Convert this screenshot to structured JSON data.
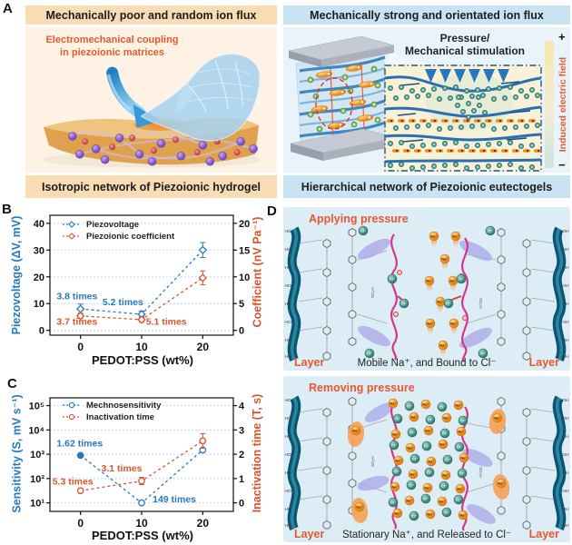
{
  "figure": {
    "panel_a": {
      "label": "A",
      "left": {
        "header": "Mechanically poor and random ion flux",
        "caption_line1": "Electromechanical coupling",
        "caption_line2": "in piezoionic matrices",
        "footer": "Isotropic network of Piezoionic hydrogel"
      },
      "right": {
        "header": "Mechanically strong and orientated ion flux",
        "stimulus_line1": "Pressure/",
        "stimulus_line2": "Mechanical stimulation",
        "field_label": "Induced electric field",
        "field_plus": "+",
        "field_minus": "−",
        "footer": "Hierarchical network of Piezoionic eutectogels"
      }
    },
    "panel_b": {
      "label": "B"
    },
    "panel_c": {
      "label": "C"
    },
    "panel_d": {
      "label": "D",
      "top": {
        "title": "Applying pressure",
        "layer_left": "Layer",
        "layer_right": "Layer",
        "caption": "Mobile Na⁺, and Bound to Cl⁻"
      },
      "bottom": {
        "title": "Removing pressure",
        "layer_left": "Layer",
        "layer_right": "Layer",
        "caption": "Stationary Na⁺, and Released to Cl⁻"
      },
      "ions": {
        "na": "Na⁺",
        "cl": "Cl⁻",
        "ho": "HO",
        "oh": "OH",
        "so3h": "SO₃H"
      }
    }
  },
  "colors": {
    "peach_bar": "#f8dcb4",
    "peach_bg": "#fdf2e4",
    "blue_bar": "#c8e3f1",
    "blue_bg": "#e9f3fa",
    "d_bg": "#dcedf6",
    "accent_orange": "#e8572e",
    "series_blue": "#2779bd",
    "series_red": "#d9542e",
    "na_orange": "#f09a28",
    "cl_teal": "#4d978b",
    "ribbon_teal": "#0b556f",
    "pedot_pink": "#d6358c",
    "blob_purple": "#a9a5e8"
  },
  "chart_data": [
    {
      "id": "panel-b-chart",
      "mount": "svgB",
      "type": "line",
      "xlabel": "PEDOT:PSS (wt%)",
      "xlim": [
        -5,
        25
      ],
      "x_ticks": [
        {
          "pos": 0,
          "label": "0"
        },
        {
          "pos": 10,
          "label": "10"
        },
        {
          "pos": 20,
          "label": "20"
        }
      ],
      "left_axis": {
        "label": "Piezovoltage (ΔV, mV)",
        "color": "#2779bd",
        "scale": "linear",
        "lim": [
          -1.8,
          43
        ],
        "ticks": [
          {
            "pos": 0,
            "label": "0"
          },
          {
            "pos": 10,
            "label": "10"
          },
          {
            "pos": 20,
            "label": "20"
          },
          {
            "pos": 30,
            "label": "30"
          },
          {
            "pos": 40,
            "label": "40"
          }
        ]
      },
      "right_axis": {
        "label": "Coefficient (nV Pa⁻¹)",
        "color": "#d9542e",
        "scale": "linear",
        "lim": [
          -0.9,
          21.5
        ],
        "ticks": [
          {
            "pos": 0,
            "label": "0"
          },
          {
            "pos": 5,
            "label": "5"
          },
          {
            "pos": 10,
            "label": "10"
          },
          {
            "pos": 15,
            "label": "15"
          },
          {
            "pos": 20,
            "label": "20"
          }
        ]
      },
      "x": [
        0,
        10,
        20
      ],
      "series": [
        {
          "name": "Piezovoltage",
          "axis": "left",
          "marker": "diamond",
          "color": "#2779bd",
          "values": [
            8,
            6,
            30
          ],
          "errors": [
            1.8,
            1.2,
            2.8
          ],
          "filled": [
            false,
            false,
            false
          ]
        },
        {
          "name": "Piezoionic coefficient",
          "axis": "right",
          "marker": "diamond",
          "color": "#d9542e",
          "values": [
            2.7,
            2.0,
            9.8
          ],
          "errors": [
            0.5,
            0.5,
            1.3
          ],
          "filled": [
            false,
            false,
            false
          ]
        }
      ],
      "annotations": [
        {
          "text": "3.8 times",
          "axis": "left",
          "x": -3.9,
          "y": 11.6,
          "anchor": "start",
          "color": "#2779bd"
        },
        {
          "text": "5.2 times",
          "axis": "left",
          "x": 3.6,
          "y": 9.4,
          "anchor": "start",
          "color": "#2779bd"
        },
        {
          "text": "3.7 times",
          "axis": "left",
          "x": -3.9,
          "y": 2.1,
          "anchor": "start",
          "color": "#d9542e"
        },
        {
          "text": "5.1 times",
          "axis": "left",
          "x": 10.7,
          "y": 2.1,
          "anchor": "start",
          "color": "#d9542e"
        }
      ]
    },
    {
      "id": "panel-c-chart",
      "mount": "svgC",
      "type": "line",
      "xlabel": "PEDOT:PSS (wt%)",
      "xlim": [
        -5,
        25
      ],
      "x_ticks": [
        {
          "pos": 0,
          "label": "0"
        },
        {
          "pos": 10,
          "label": "10"
        },
        {
          "pos": 20,
          "label": "20"
        }
      ],
      "left_axis": {
        "label": "Sensitivity (S, mV s⁻¹)",
        "color": "#2779bd",
        "scale": "log",
        "lim": [
          0.65,
          5.32
        ],
        "ticks": [
          {
            "pos": 1,
            "label": "10¹"
          },
          {
            "pos": 2,
            "label": "10²"
          },
          {
            "pos": 3,
            "label": "10³"
          },
          {
            "pos": 4,
            "label": "10⁴"
          },
          {
            "pos": 5,
            "label": "10⁵"
          }
        ]
      },
      "right_axis": {
        "label": "Inactivation time (T, s)",
        "color": "#d9542e",
        "scale": "linear",
        "lim": [
          -0.35,
          4.32
        ],
        "ticks": [
          {
            "pos": 0,
            "label": "0"
          },
          {
            "pos": 1,
            "label": "1"
          },
          {
            "pos": 2,
            "label": "2"
          },
          {
            "pos": 3,
            "label": "3"
          },
          {
            "pos": 4,
            "label": "4"
          }
        ]
      },
      "x": [
        0,
        10,
        20
      ],
      "series": [
        {
          "name": "Mechnosensitivity",
          "axis": "left",
          "marker": "circle",
          "color": "#2779bd",
          "values": [
            900,
            10,
            1500
          ],
          "errors": [
            0,
            0,
            0
          ],
          "filled": [
            true,
            false,
            false
          ]
        },
        {
          "name": "Inactivation time",
          "axis": "right",
          "marker": "circle",
          "color": "#d9542e",
          "values": [
            0.5,
            0.9,
            2.55
          ],
          "errors": [
            0.08,
            0.15,
            0.3
          ],
          "filled": [
            false,
            false,
            false
          ]
        }
      ],
      "annotations": [
        {
          "text": "1.62 times",
          "axis": "left",
          "x": -3.9,
          "y": 2100,
          "anchor": "start",
          "color": "#2779bd"
        },
        {
          "text": "5.3 times",
          "axis": "right",
          "x": -4.6,
          "y": 0.75,
          "anchor": "start",
          "color": "#d9542e"
        },
        {
          "text": "3.1 times",
          "axis": "right",
          "x": 3.4,
          "y": 1.3,
          "anchor": "start",
          "color": "#d9542e"
        },
        {
          "text": "149 times",
          "axis": "left",
          "x": 11.8,
          "y": 10.5,
          "anchor": "start",
          "color": "#2779bd"
        }
      ]
    }
  ]
}
